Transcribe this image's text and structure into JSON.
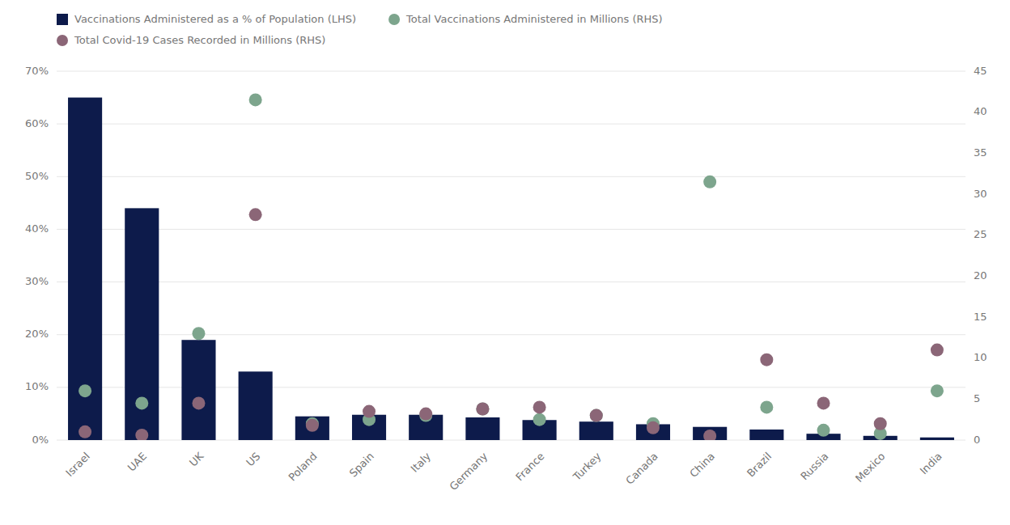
{
  "chart_data": {
    "type": "bar",
    "categories": [
      "Israel",
      "UAE",
      "UK",
      "US",
      "Poland",
      "Spain",
      "Italy",
      "Germany",
      "France",
      "Turkey",
      "Canada",
      "China",
      "Brazil",
      "Russia",
      "Mexico",
      "India"
    ],
    "series": [
      {
        "name": "Vaccinations Administered as a % of Population (LHS)",
        "type": "bar",
        "color": "#0d1b4b",
        "values": [
          65,
          44,
          19,
          13,
          4.5,
          4.8,
          4.8,
          4.3,
          3.8,
          3.5,
          3.0,
          2.5,
          2.0,
          1.2,
          0.8,
          0.5
        ]
      },
      {
        "name": "Total Vaccinations Administered in Millions (RHS)",
        "type": "scatter",
        "marker": "circle",
        "color": "#7da58d",
        "axis": "y2",
        "values": [
          6.0,
          4.5,
          13.0,
          41.5,
          2.0,
          2.5,
          3.0,
          3.8,
          2.5,
          3.0,
          2.0,
          31.5,
          4.0,
          1.2,
          0.8,
          6.0
        ]
      },
      {
        "name": "Total Covid-19 Cases Recorded in Millions (RHS)",
        "type": "scatter",
        "marker": "circle",
        "color": "#8b6677",
        "axis": "y2",
        "values": [
          1.0,
          0.6,
          4.5,
          27.5,
          1.8,
          3.5,
          3.2,
          3.8,
          4.0,
          3.0,
          1.5,
          0.5,
          9.8,
          4.5,
          2.0,
          11.0
        ]
      }
    ],
    "ylim": [
      0,
      70
    ],
    "yticks": [
      {
        "value": 0,
        "label": "0%"
      },
      {
        "value": 10,
        "label": "10%"
      },
      {
        "value": 20,
        "label": "20%"
      },
      {
        "value": 30,
        "label": "30%"
      },
      {
        "value": 40,
        "label": "40%"
      },
      {
        "value": 50,
        "label": "50%"
      },
      {
        "value": 60,
        "label": "60%"
      },
      {
        "value": 70,
        "label": "70%"
      }
    ],
    "y2lim": [
      0,
      45
    ],
    "y2ticks": [
      0,
      5,
      10,
      15,
      20,
      25,
      30,
      35,
      40,
      45
    ],
    "grid": true,
    "legend": "top"
  }
}
